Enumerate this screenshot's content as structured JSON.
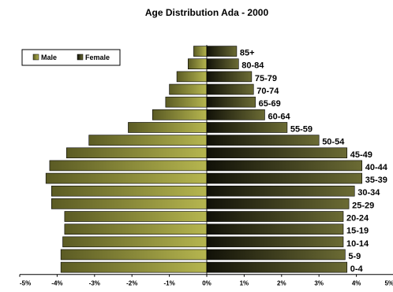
{
  "chart_data": {
    "type": "bar",
    "orientation": "horizontal-pyramid",
    "title": "Age Distribution Ada - 2000",
    "categories": [
      "0-4",
      "5-9",
      "10-14",
      "15-19",
      "20-24",
      "25-29",
      "30-34",
      "35-39",
      "40-44",
      "45-49",
      "50-54",
      "55-59",
      "60-64",
      "65-69",
      "70-74",
      "75-79",
      "80-84",
      "85+"
    ],
    "series": [
      {
        "name": "Male",
        "color": "#9a9a3c",
        "values": [
          -3.9,
          -3.9,
          -3.85,
          -3.8,
          -3.8,
          -4.15,
          -4.15,
          -4.3,
          -4.2,
          -3.75,
          -3.15,
          -2.1,
          -1.45,
          -1.1,
          -1.0,
          -0.8,
          -0.5,
          -0.35
        ]
      },
      {
        "name": "Female",
        "color": "#3f3f1f",
        "values": [
          3.75,
          3.7,
          3.65,
          3.65,
          3.65,
          3.8,
          3.95,
          4.15,
          4.15,
          3.75,
          3.0,
          2.15,
          1.55,
          1.3,
          1.25,
          1.2,
          0.85,
          0.8
        ]
      }
    ],
    "x_ticks": [
      "-5%",
      "-4%",
      "-3%",
      "-2%",
      "-1%",
      "0%",
      "1%",
      "2%",
      "3%",
      "4%",
      "5%"
    ],
    "xlim": [
      -5,
      5
    ],
    "legend": "top-left",
    "grid": false
  }
}
